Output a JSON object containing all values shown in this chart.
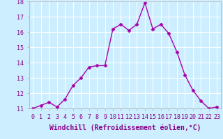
{
  "x": [
    0,
    1,
    2,
    3,
    4,
    5,
    6,
    7,
    8,
    9,
    10,
    11,
    12,
    13,
    14,
    15,
    16,
    17,
    18,
    19,
    20,
    21,
    22,
    23
  ],
  "y": [
    11.0,
    11.2,
    11.4,
    11.1,
    11.6,
    12.5,
    13.0,
    13.7,
    13.8,
    13.8,
    16.2,
    16.5,
    16.1,
    16.5,
    17.9,
    16.2,
    16.5,
    15.9,
    14.7,
    13.2,
    12.2,
    11.5,
    11.0,
    11.1
  ],
  "line_color": "#aa00aa",
  "marker": "D",
  "markersize": 2.5,
  "linewidth": 1.0,
  "xlabel": "Windchill (Refroidissement éolien,°C)",
  "xlabel_fontsize": 7,
  "ylim": [
    11,
    18
  ],
  "xlim": [
    -0.5,
    23.5
  ],
  "yticks": [
    11,
    12,
    13,
    14,
    15,
    16,
    17,
    18
  ],
  "xticks": [
    0,
    1,
    2,
    3,
    4,
    5,
    6,
    7,
    8,
    9,
    10,
    11,
    12,
    13,
    14,
    15,
    16,
    17,
    18,
    19,
    20,
    21,
    22,
    23
  ],
  "xtick_labels": [
    "0",
    "1",
    "2",
    "3",
    "4",
    "5",
    "6",
    "7",
    "8",
    "9",
    "10",
    "11",
    "12",
    "13",
    "14",
    "15",
    "16",
    "17",
    "18",
    "19",
    "20",
    "21",
    "22",
    "23"
  ],
  "bg_color": "#cceeff",
  "grid_color": "#ffffff",
  "tick_fontsize": 6,
  "label_color": "#880088",
  "spine_color": "#aaaaaa"
}
